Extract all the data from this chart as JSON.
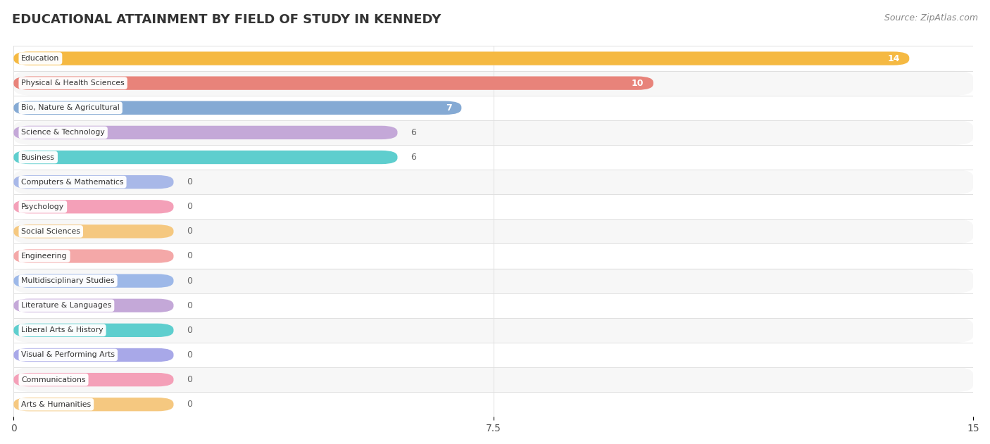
{
  "title": "EDUCATIONAL ATTAINMENT BY FIELD OF STUDY IN KENNEDY",
  "source": "Source: ZipAtlas.com",
  "categories": [
    "Education",
    "Physical & Health Sciences",
    "Bio, Nature & Agricultural",
    "Science & Technology",
    "Business",
    "Computers & Mathematics",
    "Psychology",
    "Social Sciences",
    "Engineering",
    "Multidisciplinary Studies",
    "Literature & Languages",
    "Liberal Arts & History",
    "Visual & Performing Arts",
    "Communications",
    "Arts & Humanities"
  ],
  "values": [
    14,
    10,
    7,
    6,
    6,
    0,
    0,
    0,
    0,
    0,
    0,
    0,
    0,
    0,
    0
  ],
  "bar_colors": [
    "#F5B942",
    "#E8837A",
    "#85AAD4",
    "#C4A8D8",
    "#5ECECE",
    "#A8B8E8",
    "#F4A0B8",
    "#F5C880",
    "#F4A8A8",
    "#9DB8E8",
    "#C4A8D8",
    "#5ECECE",
    "#A8A8E8",
    "#F4A0B8",
    "#F5C880"
  ],
  "xlim": [
    0,
    15
  ],
  "xticks": [
    0,
    7.5,
    15
  ],
  "background_color": "#ffffff",
  "row_bg_odd": "#f7f7f7",
  "row_bg_even": "#ffffff",
  "title_fontsize": 13,
  "source_fontsize": 9,
  "bar_height": 0.55,
  "value_label_threshold_inside": 7,
  "zero_bar_width": 2.5
}
